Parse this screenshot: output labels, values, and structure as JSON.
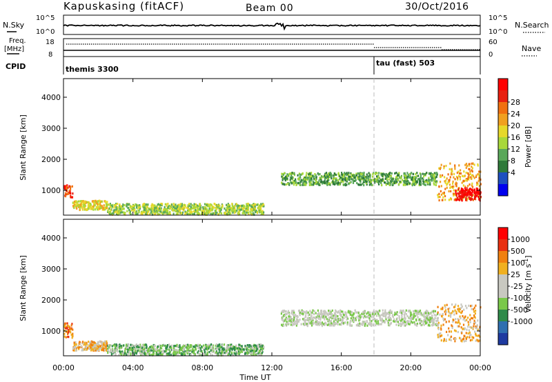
{
  "header": {
    "station": "Kapuskasing (fitACF)",
    "beam": "Beam 00",
    "date": "30/Oct/2016"
  },
  "top_panels": {
    "nsky": {
      "label": "N.Sky",
      "tick_hi": "10^5",
      "tick_lo": "10^0"
    },
    "nsearch": {
      "label": "N.Search",
      "tick_hi": "10^5",
      "tick_lo": "10^0"
    },
    "freq": {
      "label_line1": "Freq.",
      "label_line2": "[MHz]",
      "tick_hi": "18",
      "tick_lo": "8"
    },
    "nave": {
      "label": "Nave",
      "tick_hi": "60",
      "tick_lo": "0"
    },
    "cpid": {
      "label": "CPID",
      "modes": [
        {
          "name": "themis 3300",
          "start_hour": 0.0
        },
        {
          "name": "tau (fast) 503",
          "start_hour": 18.0
        }
      ]
    }
  },
  "chart_data": [
    {
      "type": "heatmap",
      "name": "power",
      "xlabel": "",
      "ylabel": "Slant Range [km]",
      "xlim": [
        0,
        24
      ],
      "ylim": [
        200,
        4600
      ],
      "yticks": [
        "1000",
        "2000",
        "3000",
        "4000"
      ],
      "colorbar": {
        "label": "Power [dB]",
        "ticks": [
          "4",
          "8",
          "12",
          "16",
          "20",
          "24",
          "28"
        ],
        "colors": [
          "#0000ee",
          "#1e4fbf",
          "#2f7a3a",
          "#5aa85a",
          "#a8d83a",
          "#e6d82a",
          "#f0a020",
          "#f07010",
          "#e82010",
          "#ff0000"
        ]
      },
      "regions": [
        {
          "t0": 0.0,
          "t1": 0.5,
          "r0": 800,
          "r1": 1200,
          "level": 8
        },
        {
          "t0": 0.5,
          "t1": 2.5,
          "r0": 400,
          "r1": 700,
          "level": 5
        },
        {
          "t0": 2.5,
          "t1": 11.5,
          "r0": 250,
          "r1": 600,
          "level": 4
        },
        {
          "t0": 12.5,
          "t1": 21.5,
          "r0": 1200,
          "r1": 1600,
          "level": 3
        },
        {
          "t0": 21.5,
          "t1": 24.0,
          "r0": 700,
          "r1": 1900,
          "level": 6
        },
        {
          "t0": 22.5,
          "t1": 24.0,
          "r0": 700,
          "r1": 1100,
          "level": 9
        }
      ]
    },
    {
      "type": "heatmap",
      "name": "velocity",
      "xlabel": "Time UT",
      "ylabel": "Slant Range [km]",
      "xlim": [
        0,
        24
      ],
      "ylim": [
        200,
        4600
      ],
      "yticks": [
        "1000",
        "2000",
        "3000",
        "4000"
      ],
      "xticks": [
        "00:00",
        "04:00",
        "08:00",
        "12:00",
        "16:00",
        "20:00",
        "00:00"
      ],
      "colorbar": {
        "label": "Velocity [m s^-1]",
        "ticks": [
          "1000",
          "500",
          "100",
          "25",
          "-25",
          "-100",
          "-500",
          "-1000"
        ],
        "colors": [
          "#1e3aa0",
          "#2f6fb0",
          "#2f8a4a",
          "#7ac84a",
          "#c8c8c0",
          "#c8c8c0",
          "#f0b020",
          "#f08010",
          "#e83010",
          "#ff0000"
        ]
      },
      "regions": [
        {
          "t0": 0.0,
          "t1": 0.5,
          "r0": 800,
          "r1": 1300,
          "level": 7
        },
        {
          "t0": 0.5,
          "t1": 2.5,
          "r0": 400,
          "r1": 700,
          "level": 6
        },
        {
          "t0": 2.5,
          "t1": 11.5,
          "r0": 250,
          "r1": 600,
          "level": 3
        },
        {
          "t0": 12.5,
          "t1": 21.5,
          "r0": 1200,
          "r1": 1700,
          "level": 4
        },
        {
          "t0": 21.5,
          "t1": 24.0,
          "r0": 700,
          "r1": 1900,
          "level": 6
        }
      ]
    }
  ]
}
